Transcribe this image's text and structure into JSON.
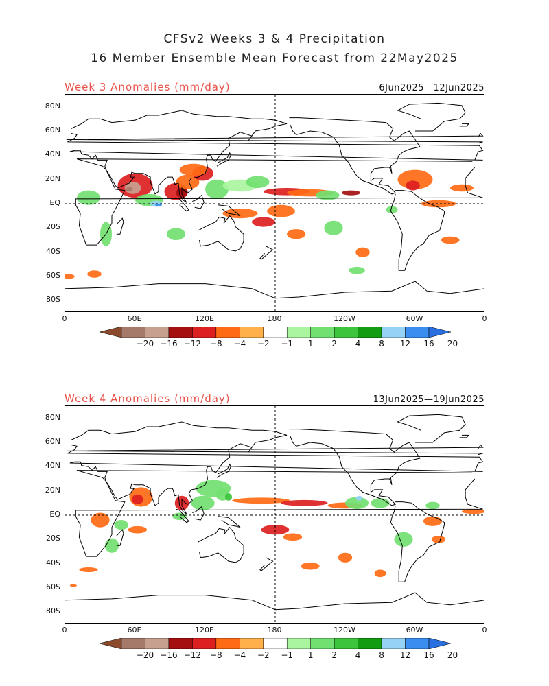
{
  "title_line1": "CFSv2 Weeks 3 & 4 Precipitation",
  "title_line2": "16 Member Ensemble Mean Forecast from 22May2025",
  "panels": [
    {
      "title": "Week 3 Anomalies (mm/day)",
      "dates": "6Jun2025—12Jun2025"
    },
    {
      "title": "Week 4 Anomalies (mm/day)",
      "dates": "13Jun2025—19Jun2025"
    }
  ],
  "lat_labels": [
    "80N",
    "60N",
    "40N",
    "20N",
    "EQ",
    "20S",
    "40S",
    "60S",
    "80S"
  ],
  "lon_labels": [
    "0",
    "60E",
    "120E",
    "180",
    "120W",
    "60W",
    "0"
  ],
  "colorbar": {
    "colors": [
      "#8b4a2b",
      "#a67a6a",
      "#c8a090",
      "#a50f0f",
      "#dc1f1f",
      "#ff6a14",
      "#ffb04a",
      "#ffffff",
      "#aaf5a0",
      "#72e070",
      "#3dc43d",
      "#129c12",
      "#96d2f5",
      "#3a8ef0",
      "#2a6fe0"
    ],
    "labels": [
      "−20",
      "−16",
      "−12",
      "−8",
      "−4",
      "−2",
      "−1",
      "1",
      "2",
      "4",
      "8",
      "12",
      "16",
      "20"
    ]
  }
}
